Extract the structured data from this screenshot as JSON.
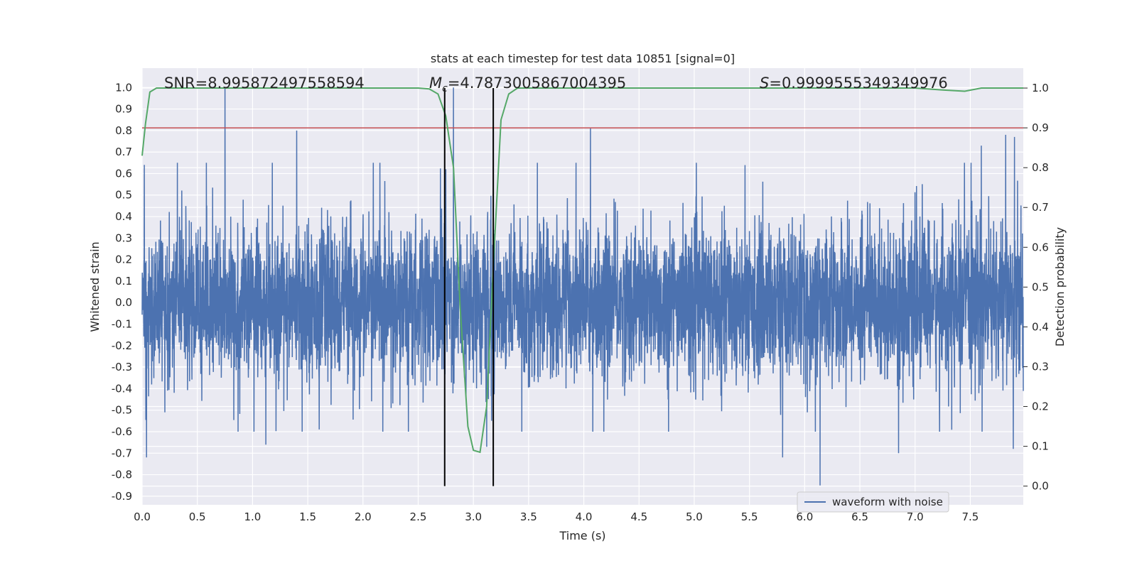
{
  "chart_data": {
    "type": "line",
    "title": "stats at each timestep for test data 10851 [signal=0]",
    "xlabel": "Time (s)",
    "ylabel": "Whitened strain",
    "y2label": "Detection probability",
    "xlim": [
      0.0,
      7.98
    ],
    "ylim": [
      -0.94,
      1.09
    ],
    "y2lim": [
      -0.047,
      1.05
    ],
    "xticks": [
      "0.0",
      "0.5",
      "1.0",
      "1.5",
      "2.0",
      "2.5",
      "3.0",
      "3.5",
      "4.0",
      "4.5",
      "5.0",
      "5.5",
      "6.0",
      "6.5",
      "7.0",
      "7.5"
    ],
    "yticks": [
      "1.0",
      "0.9",
      "0.8",
      "0.7",
      "0.6",
      "0.5",
      "0.4",
      "0.3",
      "0.2",
      "0.1",
      "0.0",
      "-0.1",
      "-0.2",
      "-0.3",
      "-0.4",
      "-0.5",
      "-0.6",
      "-0.7",
      "-0.8",
      "-0.9"
    ],
    "y2ticks": [
      "1.0",
      "0.9",
      "0.8",
      "0.7",
      "0.6",
      "0.5",
      "0.4",
      "0.3",
      "0.2",
      "0.1",
      "0.0"
    ],
    "grid": true,
    "legend_position": "lower-right",
    "colors": {
      "waveform": "#4c72b0",
      "probability": "#55a868",
      "threshold": "#c44e52",
      "markers": "#000000",
      "background": "#eaeaf2",
      "grid": "#ffffff"
    },
    "annotations": {
      "snr": "SNR=8.995872497558594",
      "mc_symbol": "M",
      "mc_sub": "c",
      "mc_value": "=4.787300586700439​5",
      "s_symbol": "S",
      "s_value": "=0.9999555349349976"
    },
    "series": [
      {
        "name": "waveform with noise",
        "kind": "noise",
        "sample_rate": 2048,
        "typical_amplitude": [
          -0.45,
          0.45
        ],
        "spikes": [
          {
            "x": 0.02,
            "y": 0.64
          },
          {
            "x": 0.04,
            "y": -0.72
          },
          {
            "x": 0.75,
            "y": 1.0
          },
          {
            "x": 1.4,
            "y": 0.8
          },
          {
            "x": 1.12,
            "y": -0.66
          },
          {
            "x": 2.82,
            "y": 1.0
          },
          {
            "x": 2.75,
            "y": 0.62
          },
          {
            "x": 4.06,
            "y": 0.81
          },
          {
            "x": 5.8,
            "y": -0.72
          },
          {
            "x": 6.14,
            "y": -0.85
          },
          {
            "x": 6.85,
            "y": -0.7
          },
          {
            "x": 7.6,
            "y": 0.73
          },
          {
            "x": 7.82,
            "y": 0.78
          },
          {
            "x": 7.9,
            "y": 0.77
          },
          {
            "x": 7.89,
            "y": -0.68
          },
          {
            "x": 3.12,
            "y": -0.67
          }
        ]
      },
      {
        "name": "",
        "kind": "probability",
        "x": [
          0.0,
          0.03,
          0.07,
          0.13,
          0.5,
          1.0,
          2.0,
          2.5,
          2.6,
          2.68,
          2.75,
          2.82,
          2.88,
          2.95,
          3.0,
          3.06,
          3.12,
          3.18,
          3.25,
          3.32,
          3.4,
          3.6,
          4.0,
          5.0,
          6.0,
          7.0,
          7.25,
          7.45,
          7.6,
          7.98
        ],
        "y": [
          0.83,
          0.91,
          0.99,
          1.0,
          1.0,
          1.0,
          1.0,
          1.0,
          0.998,
          0.985,
          0.93,
          0.8,
          0.45,
          0.15,
          0.09,
          0.085,
          0.2,
          0.55,
          0.92,
          0.985,
          1.0,
          1.0,
          1.0,
          1.0,
          1.0,
          1.0,
          0.995,
          0.992,
          1.0,
          1.0
        ]
      }
    ],
    "threshold_y2": 0.9,
    "markers_x": [
      2.74,
      3.18
    ]
  },
  "legend_label": "waveform with noise"
}
